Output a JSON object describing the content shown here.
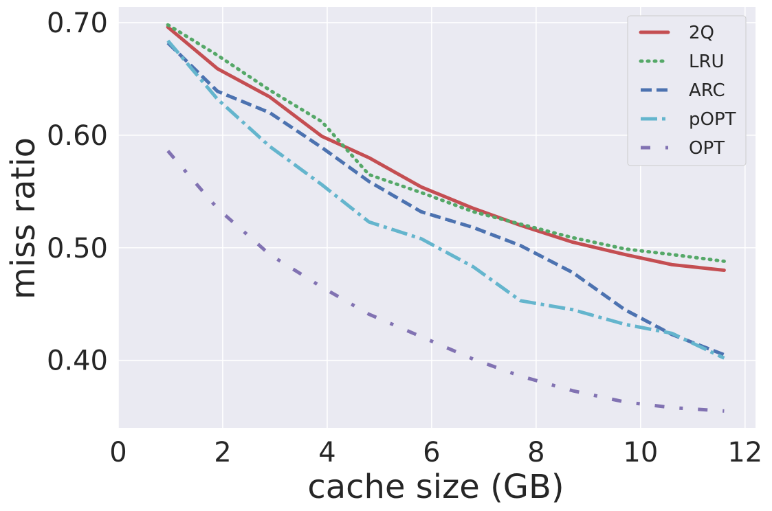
{
  "chart_data": {
    "type": "line",
    "title": "",
    "xlabel": "cache size (GB)",
    "ylabel": "miss ratio",
    "xlim": [
      0,
      12.2
    ],
    "ylim": [
      0.34,
      0.714
    ],
    "xticks": [
      0,
      2,
      4,
      6,
      8,
      10,
      12
    ],
    "xtick_labels": [
      "0",
      "2",
      "4",
      "6",
      "8",
      "10",
      "12"
    ],
    "yticks": [
      0.4,
      0.5,
      0.6,
      0.7
    ],
    "ytick_labels": [
      "0.40",
      "0.50",
      "0.60",
      "0.70"
    ],
    "grid": true,
    "legend_position": "top-right",
    "background": "#eaeaf2",
    "series": [
      {
        "name": "2Q",
        "color": "#c44e52",
        "style": "solid",
        "x": [
          0.95,
          1.9,
          2.9,
          3.9,
          4.8,
          5.8,
          6.8,
          7.7,
          8.7,
          9.7,
          10.6,
          11.6
        ],
        "y": [
          0.696,
          0.659,
          0.634,
          0.599,
          0.58,
          0.554,
          0.535,
          0.52,
          0.505,
          0.494,
          0.485,
          0.48
        ]
      },
      {
        "name": "LRU",
        "color": "#55a868",
        "style": "dotted",
        "x": [
          0.95,
          1.9,
          2.9,
          3.9,
          4.8,
          5.8,
          6.8,
          7.7,
          8.7,
          9.7,
          10.6,
          11.6
        ],
        "y": [
          0.698,
          0.671,
          0.64,
          0.612,
          0.565,
          0.549,
          0.532,
          0.521,
          0.509,
          0.499,
          0.494,
          0.488
        ]
      },
      {
        "name": "ARC",
        "color": "#4c72b0",
        "style": "dashed",
        "x": [
          0.95,
          1.9,
          2.9,
          3.9,
          4.8,
          5.8,
          6.8,
          7.7,
          8.7,
          9.7,
          10.6,
          11.6
        ],
        "y": [
          0.682,
          0.639,
          0.62,
          0.589,
          0.559,
          0.532,
          0.518,
          0.502,
          0.478,
          0.445,
          0.423,
          0.405
        ]
      },
      {
        "name": "pOPT",
        "color": "#64b5cd",
        "style": "dashdot",
        "x": [
          0.95,
          1.9,
          2.9,
          3.9,
          4.8,
          5.8,
          6.8,
          7.7,
          8.7,
          9.7,
          10.6,
          11.6
        ],
        "y": [
          0.684,
          0.632,
          0.59,
          0.556,
          0.523,
          0.508,
          0.483,
          0.453,
          0.445,
          0.432,
          0.424,
          0.402
        ]
      },
      {
        "name": "OPT",
        "color": "#8172b2",
        "style": "dashdotdot",
        "x": [
          0.95,
          1.9,
          2.9,
          3.9,
          4.8,
          5.8,
          6.8,
          7.7,
          8.7,
          9.7,
          10.6,
          11.6
        ],
        "y": [
          0.586,
          0.535,
          0.494,
          0.465,
          0.441,
          0.421,
          0.401,
          0.386,
          0.373,
          0.363,
          0.358,
          0.355
        ]
      }
    ]
  }
}
